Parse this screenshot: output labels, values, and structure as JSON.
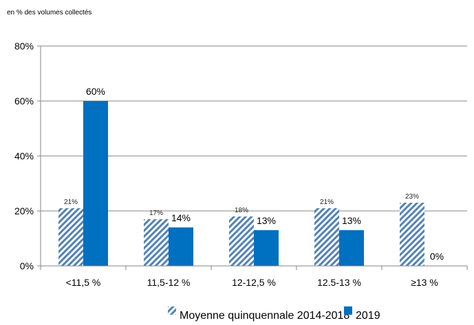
{
  "chart_data": {
    "type": "bar",
    "unit_label": "en % des volumes collectés",
    "categories": [
      "<11,5 %",
      "11,5-12 %",
      "12-12,5 %",
      "12.5-13 %",
      "≥13 %"
    ],
    "series": [
      {
        "name": "Moyenne quinquennale 2014-2018",
        "values": [
          21,
          17,
          18,
          21,
          23
        ],
        "labels": [
          "21%",
          "17%",
          "18%",
          "21%",
          "23%"
        ],
        "color": "#4f81bd",
        "pattern": "diagonal-hatch"
      },
      {
        "name": "2019",
        "values": [
          60,
          14,
          13,
          13,
          0
        ],
        "labels": [
          "60%",
          "14%",
          "13%",
          "13%",
          "0%"
        ],
        "color": "#0070c0",
        "pattern": "solid"
      }
    ],
    "y_ticks": [
      "0%",
      "20%",
      "40%",
      "60%",
      "80%"
    ],
    "ylim": [
      0,
      80
    ],
    "grid": true,
    "legend_position": "bottom"
  }
}
